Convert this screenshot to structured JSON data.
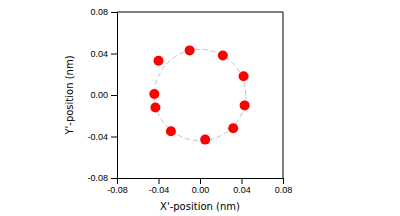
{
  "chart_data": {
    "type": "scatter",
    "x": [
      -0.04,
      -0.01,
      0.022,
      0.042,
      0.043,
      0.032,
      0.005,
      -0.028,
      -0.043,
      -0.044
    ],
    "values": [
      0.033,
      0.043,
      0.038,
      0.018,
      -0.01,
      -0.032,
      -0.043,
      -0.035,
      -0.012,
      0.001
    ],
    "color": "#ff0000",
    "marker": "circle",
    "circle": {
      "radius": 0.044,
      "color": "#bbbbbb",
      "line_style": "dashed"
    },
    "xlim": [
      -0.08,
      0.08
    ],
    "ylim": [
      -0.08,
      0.08
    ],
    "xticks": [
      -0.08,
      -0.04,
      {
        "value": 0,
        "label": "0.00"
      },
      0.04,
      0.08
    ],
    "yticks": [
      -0.08,
      -0.04,
      {
        "value": 0,
        "label": "0.00"
      },
      0.04,
      0.08
    ],
    "xlabel": "X'-position (nm)",
    "ylabel": "Y'-position (nm)",
    "grid": false
  }
}
